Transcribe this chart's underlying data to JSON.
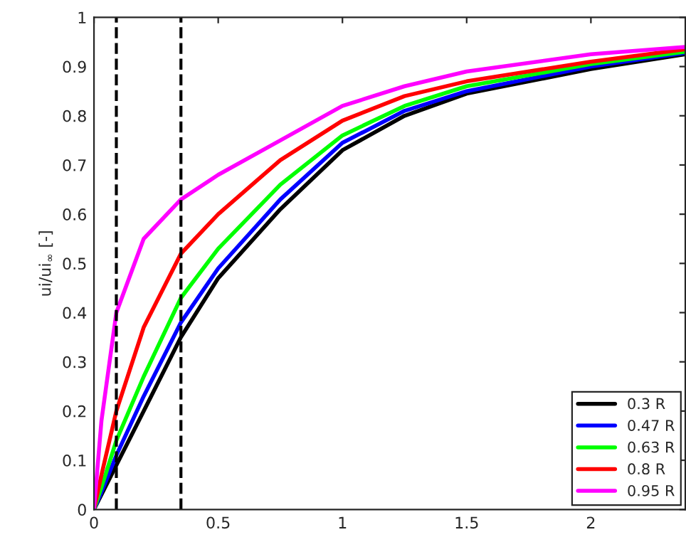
{
  "chart_data": {
    "type": "line",
    "ylabel": "ui/ui$_{∞}$ [-]",
    "x": [
      0,
      0.03,
      0.09,
      0.2,
      0.35,
      0.5,
      0.75,
      1,
      1.25,
      1.5,
      2,
      2.38
    ],
    "series": [
      {
        "name": "0.3 R",
        "color": "#000000",
        "values": [
          0,
          0.03,
          0.09,
          0.2,
          0.35,
          0.47,
          0.61,
          0.73,
          0.8,
          0.845,
          0.895,
          0.925
        ]
      },
      {
        "name": "0.47 R",
        "color": "#0000ff",
        "values": [
          0,
          0.035,
          0.11,
          0.23,
          0.38,
          0.49,
          0.63,
          0.745,
          0.81,
          0.85,
          0.9,
          0.928
        ]
      },
      {
        "name": "0.63 R",
        "color": "#00ff00",
        "values": [
          0,
          0.045,
          0.14,
          0.27,
          0.43,
          0.53,
          0.66,
          0.76,
          0.82,
          0.86,
          0.905,
          0.93
        ]
      },
      {
        "name": "0.8 R",
        "color": "#ff0000",
        "values": [
          0,
          0.07,
          0.2,
          0.37,
          0.52,
          0.6,
          0.71,
          0.79,
          0.84,
          0.87,
          0.91,
          0.935
        ]
      },
      {
        "name": "0.95 R",
        "color": "#ff00ff",
        "values": [
          0,
          0.18,
          0.4,
          0.55,
          0.63,
          0.68,
          0.75,
          0.82,
          0.86,
          0.89,
          0.925,
          0.94
        ]
      }
    ],
    "ref_lines": [
      {
        "axis": "x",
        "value": 0.09,
        "color": "#000000",
        "line_style": "dashed"
      },
      {
        "axis": "x",
        "value": 0.35,
        "color": "#000000",
        "line_style": "dashed"
      }
    ],
    "xlim": [
      0,
      2.38
    ],
    "ylim": [
      0,
      1
    ],
    "xticks": [
      0,
      0.5,
      1,
      1.5,
      2
    ],
    "yticks": [
      0,
      0.1,
      0.2,
      0.3,
      0.4,
      0.5,
      0.6,
      0.7,
      0.8,
      0.9,
      1
    ],
    "legend": "bottom right",
    "grid": false,
    "line_style": "solid",
    "marker": "none"
  }
}
